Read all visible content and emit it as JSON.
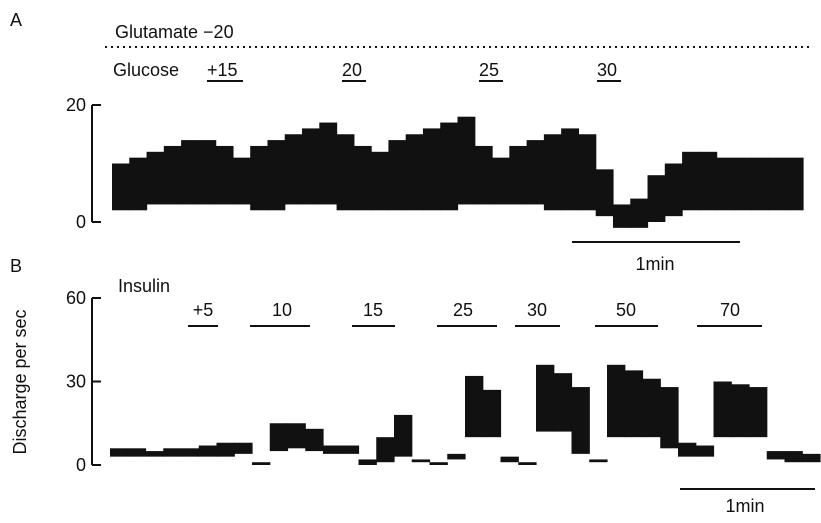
{
  "chart_data": [
    {
      "type": "band",
      "label": "A",
      "color": "#111",
      "annotations": [
        "Glutamate −20",
        "Glucose",
        "+15",
        "20",
        "25",
        "30"
      ],
      "scale_bar": "1min",
      "categories": [
        null,
        null,
        null,
        null,
        null,
        null,
        null,
        null,
        null,
        null,
        null,
        null,
        null,
        null,
        null,
        null,
        null,
        null,
        null,
        null,
        null,
        null,
        null,
        null,
        null,
        null,
        null,
        null,
        null,
        null,
        null,
        null,
        null,
        null,
        null,
        null,
        null,
        null,
        null,
        null
      ],
      "series": [
        {
          "values": [
            10,
            11,
            12,
            13,
            14,
            14,
            13,
            11,
            13,
            14,
            15,
            16,
            17,
            15,
            13,
            12,
            14,
            15,
            16,
            17,
            18,
            13,
            11,
            13,
            14,
            15,
            16,
            15,
            9,
            3,
            4,
            8,
            10,
            12,
            12,
            11,
            11,
            11,
            11,
            11
          ]
        },
        {
          "values": [
            2,
            2,
            3,
            3,
            3,
            3,
            3,
            3,
            2,
            2,
            3,
            3,
            3,
            2,
            2,
            2,
            2,
            2,
            2,
            2,
            3,
            3,
            3,
            3,
            3,
            2,
            2,
            2,
            1,
            -1,
            -1,
            0,
            1,
            2,
            2,
            2,
            2,
            2,
            2,
            2
          ]
        }
      ],
      "ylim": [
        0,
        20
      ],
      "yticks": [
        0,
        20
      ]
    },
    {
      "type": "band",
      "label": "B",
      "color": "#111",
      "ylabel": "Discharge per sec",
      "annotations": [
        "Insulin",
        "+5",
        "10",
        "15",
        "25",
        "30",
        "50",
        "70"
      ],
      "scale_bar": "1min",
      "categories": [
        null,
        null,
        null,
        null,
        null,
        null,
        null,
        null,
        null,
        null,
        null,
        null,
        null,
        null,
        null,
        null,
        null,
        null,
        null,
        null,
        null,
        null,
        null,
        null,
        null,
        null,
        null,
        null,
        null,
        null,
        null,
        null,
        null,
        null,
        null,
        null,
        null,
        null,
        null,
        null
      ],
      "series": [
        {
          "values": [
            6,
            6,
            5,
            6,
            6,
            7,
            8,
            8,
            1,
            15,
            15,
            13,
            7,
            7,
            2,
            10,
            18,
            2,
            1,
            4,
            32,
            27,
            3,
            1,
            36,
            33,
            28,
            2,
            36,
            34,
            31,
            28,
            8,
            7,
            30,
            29,
            28,
            5,
            5,
            4
          ]
        },
        {
          "values": [
            3,
            3,
            3,
            3,
            3,
            3,
            3,
            4,
            0,
            5,
            6,
            5,
            4,
            4,
            0,
            1,
            3,
            1,
            0,
            2,
            10,
            10,
            1,
            0,
            12,
            12,
            4,
            1,
            10,
            10,
            10,
            6,
            3,
            3,
            10,
            10,
            10,
            2,
            1,
            1
          ]
        }
      ],
      "ylim": [
        0,
        60
      ],
      "yticks": [
        0,
        30,
        60
      ]
    }
  ]
}
